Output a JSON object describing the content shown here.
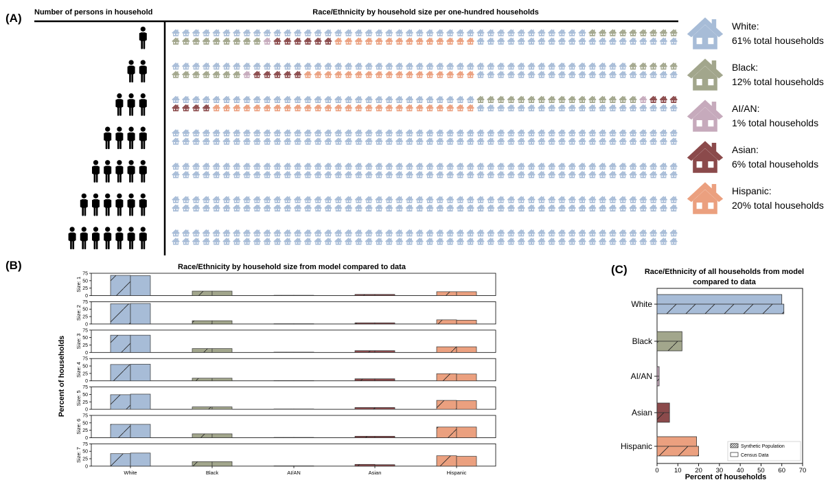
{
  "colors": {
    "White": "#a7bcd7",
    "Black": "#a2a68c",
    "AI/AN": "#c6aabc",
    "Asian": "#8b4a4b",
    "Hispanic": "#eba07f",
    "axis": "#000000"
  },
  "icon_names": [
    "person-icon",
    "house-icon"
  ],
  "panel_labels": {
    "a": "(A)",
    "b": "(B)",
    "c": "(C)"
  },
  "chart_data": [
    {
      "type": "pictograph",
      "panel": "A",
      "title": "Race/Ethnicity by household size per one-hundred households",
      "row_header": "Number of persons in household",
      "units_per_row": 100,
      "house_size_rows": [
        {
          "persons": 1,
          "counts": {
            "White": 41,
            "Black": 18,
            "AI/AN": 1,
            "Asian": 6,
            "Hispanic": 14
          }
        },
        {
          "persons": 2,
          "counts": {
            "White": 45,
            "Black": 12,
            "AI/AN": 1,
            "Asian": 5,
            "Hispanic": 17
          }
        },
        {
          "persons": 3,
          "counts": {
            "White": 30,
            "Black": 16,
            "AI/AN": 1,
            "Asian": 7,
            "Hispanic": 26
          }
        },
        {
          "persons": 4,
          "counts": {
            "White": 100,
            "Black": 0,
            "AI/AN": 0,
            "Asian": 0,
            "Hispanic": 0
          }
        },
        {
          "persons": 5,
          "counts": {
            "White": 100,
            "Black": 0,
            "AI/AN": 0,
            "Asian": 0,
            "Hispanic": 0
          }
        },
        {
          "persons": 6,
          "counts": {
            "White": 100,
            "Black": 0,
            "AI/AN": 0,
            "Asian": 0,
            "Hispanic": 0
          }
        },
        {
          "persons": 7,
          "counts": {
            "White": 100,
            "Black": 0,
            "AI/AN": 0,
            "Asian": 0,
            "Hispanic": 0
          }
        }
      ],
      "legend": [
        {
          "name": "White",
          "line1": "White:",
          "line2": "61% total households",
          "percent": 61
        },
        {
          "name": "Black",
          "line1": "Black:",
          "line2": "12% total households",
          "percent": 12
        },
        {
          "name": "AI/AN",
          "line1": "AI/AN:",
          "line2": "1% total households",
          "percent": 1
        },
        {
          "name": "Asian",
          "line1": "Asian:",
          "line2": "6% total households",
          "percent": 6
        },
        {
          "name": "Hispanic",
          "line1": "Hispanic:",
          "line2": "20% total households",
          "percent": 20
        }
      ]
    },
    {
      "type": "bar",
      "panel": "B",
      "title": "Race/Ethnicity by household size from model compared to data",
      "ylabel": "Percent of households",
      "ylim": [
        0,
        75
      ],
      "yticks": [
        0,
        25,
        50,
        75
      ],
      "categories": [
        "White",
        "Black",
        "AI/AN",
        "Asian",
        "Hispanic"
      ],
      "bar_styles": [
        "hatched",
        "solid"
      ],
      "panels": [
        {
          "label": "Size: 1",
          "model": [
            68,
            15,
            1,
            4,
            13
          ],
          "data": [
            67,
            15,
            1,
            4,
            13
          ]
        },
        {
          "label": "Size: 2",
          "model": [
            68,
            11,
            1,
            4,
            14
          ],
          "data": [
            69,
            11,
            1,
            4,
            13
          ]
        },
        {
          "label": "Size: 3",
          "model": [
            58,
            13,
            1,
            6,
            19
          ],
          "data": [
            58,
            13,
            1,
            6,
            19
          ]
        },
        {
          "label": "Size: 4",
          "model": [
            55,
            9,
            1,
            7,
            24
          ],
          "data": [
            56,
            9,
            1,
            7,
            23
          ]
        },
        {
          "label": "Size: 5",
          "model": [
            49,
            8,
            1,
            6,
            30
          ],
          "data": [
            51,
            8,
            1,
            6,
            29
          ]
        },
        {
          "label": "Size: 6",
          "model": [
            45,
            13,
            1,
            5,
            36
          ],
          "data": [
            45,
            13,
            1,
            5,
            36
          ]
        },
        {
          "label": "Size: 7",
          "model": [
            42,
            15,
            1,
            6,
            35
          ],
          "data": [
            44,
            15,
            1,
            5,
            33
          ]
        }
      ]
    },
    {
      "type": "bar",
      "orientation": "horizontal",
      "panel": "C",
      "title": "Race/Ethnicity of all households from model",
      "title_line2": "compared to data",
      "xlabel": "Percent of households",
      "xlim": [
        0,
        70
      ],
      "xticks": [
        0,
        10,
        20,
        30,
        40,
        50,
        60,
        70
      ],
      "categories": [
        "White",
        "Black",
        "AI/AN",
        "Asian",
        "Hispanic"
      ],
      "series": [
        {
          "name": "Census Data",
          "style": "solid",
          "values": [
            60,
            12,
            1,
            6,
            19
          ]
        },
        {
          "name": "Synthetic Population",
          "style": "hatched",
          "values": [
            61,
            12,
            1,
            6,
            20
          ]
        }
      ],
      "legend_position": "lower-right"
    }
  ]
}
